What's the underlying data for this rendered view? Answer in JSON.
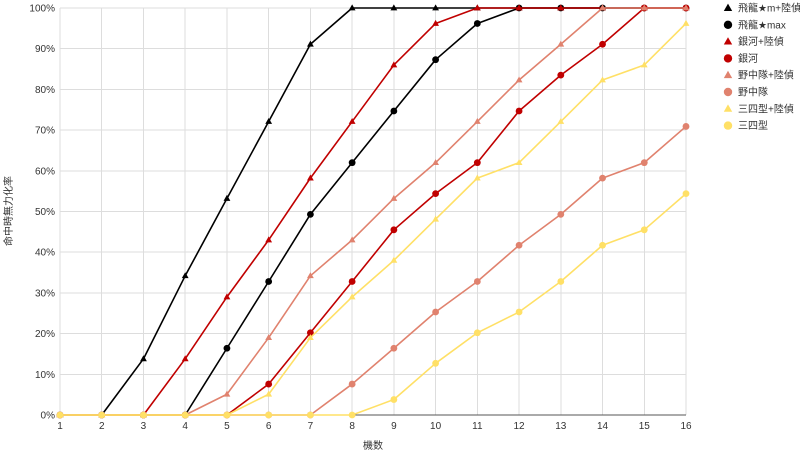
{
  "chart_data": {
    "type": "line",
    "xlabel": "機数",
    "ylabel": "命中時無力化率",
    "x": [
      1,
      2,
      3,
      4,
      5,
      6,
      7,
      8,
      9,
      10,
      11,
      12,
      13,
      14,
      15,
      16
    ],
    "x_ticks": [
      "1",
      "2",
      "3",
      "4",
      "5",
      "6",
      "7",
      "8",
      "9",
      "10",
      "11",
      "12",
      "13",
      "14",
      "15",
      "16"
    ],
    "ylim": [
      0,
      100
    ],
    "y_ticks": [
      "0%",
      "10%",
      "20%",
      "30%",
      "40%",
      "50%",
      "60%",
      "70%",
      "80%",
      "90%",
      "100%"
    ],
    "grid": true,
    "legend_position": "right",
    "series": [
      {
        "name": "飛龍★m+陸偵",
        "color": "#000000",
        "marker": "triangle",
        "values": [
          0,
          0,
          13.8,
          34.2,
          53.2,
          72.1,
          91.1,
          100,
          100,
          100,
          100,
          100,
          100,
          100,
          100,
          100
        ]
      },
      {
        "name": "飛龍★max",
        "color": "#000000",
        "marker": "circle",
        "values": [
          0,
          0,
          0,
          0,
          16.4,
          32.8,
          49.3,
          62.0,
          74.7,
          87.3,
          96.2,
          100,
          100,
          100,
          100,
          100
        ]
      },
      {
        "name": "銀河+陸偵",
        "color": "#c00000",
        "marker": "triangle",
        "values": [
          0,
          0,
          0,
          13.8,
          29.0,
          43.0,
          58.2,
          72.1,
          86.0,
          96.2,
          100,
          100,
          100,
          100,
          100,
          100
        ]
      },
      {
        "name": "銀河",
        "color": "#c00000",
        "marker": "circle",
        "values": [
          0,
          0,
          0,
          0,
          0,
          7.6,
          20.2,
          32.8,
          45.5,
          54.4,
          62.0,
          74.7,
          83.5,
          91.1,
          100,
          100
        ]
      },
      {
        "name": "野中隊+陸偵",
        "color": "#e0826e",
        "marker": "triangle",
        "values": [
          0,
          0,
          0,
          0,
          5.1,
          19.0,
          34.2,
          43.0,
          53.2,
          62.0,
          72.1,
          82.3,
          91.1,
          100,
          100,
          100
        ]
      },
      {
        "name": "野中隊",
        "color": "#e0826e",
        "marker": "circle",
        "values": [
          0,
          0,
          0,
          0,
          0,
          0,
          0,
          7.6,
          16.4,
          25.3,
          32.8,
          41.7,
          49.3,
          58.2,
          62.0,
          70.9
        ]
      },
      {
        "name": "三四型+陸偵",
        "color": "#ffe066",
        "marker": "triangle",
        "values": [
          0,
          0,
          0,
          0,
          0,
          5.1,
          19.0,
          29.0,
          38.0,
          48.1,
          58.2,
          62.0,
          72.1,
          82.3,
          86.0,
          96.2
        ]
      },
      {
        "name": "三四型",
        "color": "#ffe066",
        "marker": "circle",
        "values": [
          0,
          0,
          0,
          0,
          0,
          0,
          0,
          0,
          3.8,
          12.7,
          20.2,
          25.3,
          32.8,
          41.7,
          45.5,
          54.4
        ]
      }
    ]
  }
}
